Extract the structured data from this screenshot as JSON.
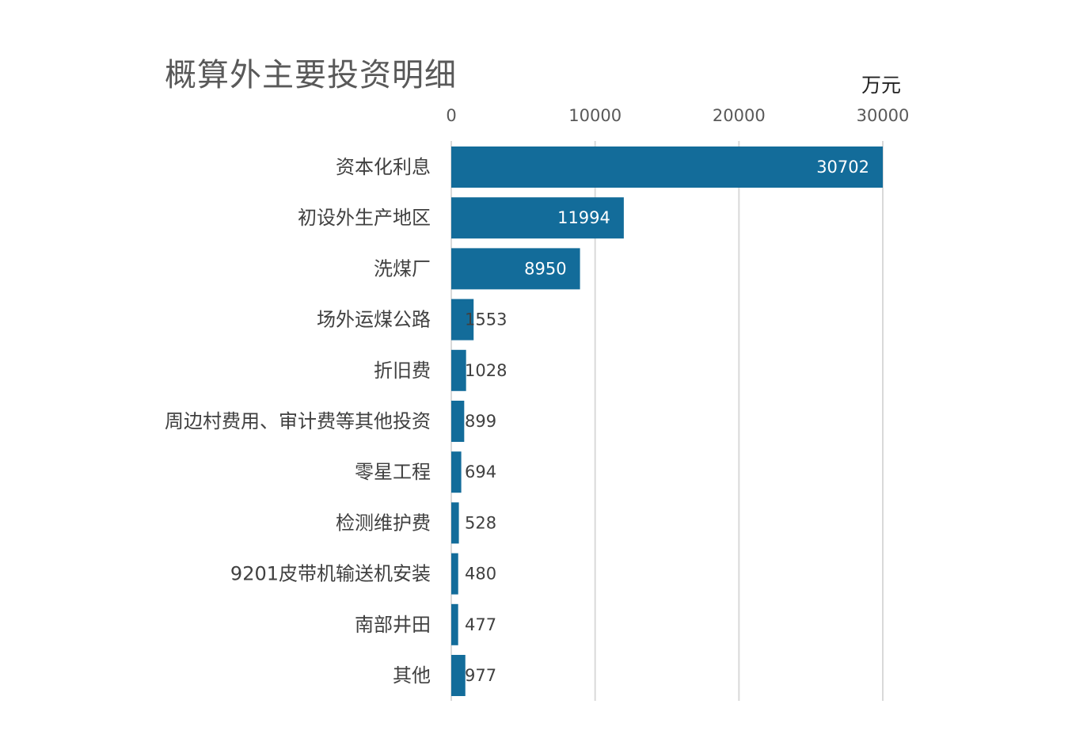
{
  "chart_data": {
    "type": "bar",
    "orientation": "horizontal",
    "title": "概算外主要投资明细",
    "unit": "万元",
    "xlim": [
      0,
      30000
    ],
    "ticks": [
      0,
      10000,
      20000,
      30000
    ],
    "tick_labels": [
      "0",
      "10000",
      "20000",
      "30000"
    ],
    "axis_position": "top",
    "grid": true,
    "categories": [
      "资本化利息",
      "初设外生产地区",
      "洗煤厂",
      "场外运煤公路",
      "折旧费",
      "周边村费用、审计费等其他投资",
      "零星工程",
      "检测维护费",
      "9201皮带机输送机安装",
      "南部井田",
      "其他"
    ],
    "values": [
      30702,
      11994,
      8950,
      1553,
      1028,
      899,
      694,
      528,
      480,
      477,
      977
    ],
    "value_labels": [
      "30702",
      "11994",
      "8950",
      "1553",
      "1028",
      "899",
      "694",
      "528",
      "480",
      "477",
      "977"
    ],
    "bar_color": "#136c9a",
    "label_color_inside": "#ffffff",
    "label_color_outside": "#404040",
    "grid_color": "#d9d9d9"
  }
}
